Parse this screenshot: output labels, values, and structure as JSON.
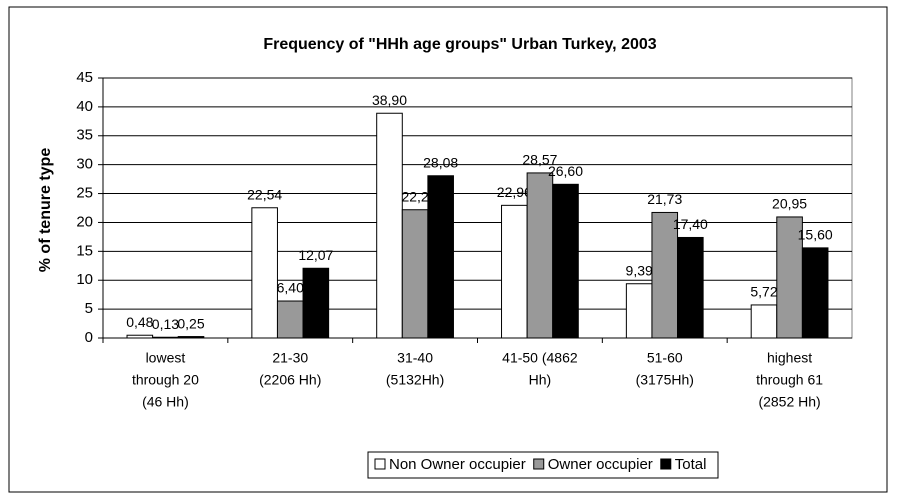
{
  "chart_data": {
    "type": "bar",
    "title": "Frequency of \"HHh age groups\" Urban Turkey, 2003",
    "y_label": "% of tenure type",
    "categories": [
      [
        "lowest",
        "through 20",
        "(46 Hh)"
      ],
      [
        "21-30",
        "(2206 Hh)"
      ],
      [
        "31-40",
        "(5132Hh)"
      ],
      [
        "41-50 (4862",
        "Hh)"
      ],
      [
        "51-60",
        "(3175Hh)"
      ],
      [
        "highest",
        "through 61",
        "(2852 Hh)"
      ]
    ],
    "series": [
      {
        "name": "Non Owner occupier",
        "color": "#ffffff",
        "values": [
          0.48,
          22.54,
          38.9,
          22.96,
          9.39,
          5.72
        ],
        "value_labels": [
          "0,48",
          "22,54",
          "38,90",
          "22,96",
          "9,39",
          "5,72"
        ]
      },
      {
        "name": "Owner occupier",
        "color": "#999999",
        "values": [
          0.13,
          6.4,
          22.2,
          28.57,
          21.73,
          20.95
        ],
        "value_labels": [
          "0,13",
          "6,40",
          "22,2",
          "28,57",
          "21,73",
          "20,95"
        ]
      },
      {
        "name": "Total",
        "color": "#000000",
        "values": [
          0.25,
          12.07,
          28.08,
          26.6,
          17.4,
          15.6
        ],
        "value_labels": [
          "0,25",
          "12,07",
          "28,08",
          "26,60",
          "17,40",
          "15,60"
        ]
      }
    ],
    "ylim": [
      0,
      45
    ],
    "yticks": [
      0,
      5,
      10,
      15,
      20,
      25,
      30,
      35,
      40,
      45
    ],
    "grid": true,
    "legend": "bottom"
  }
}
